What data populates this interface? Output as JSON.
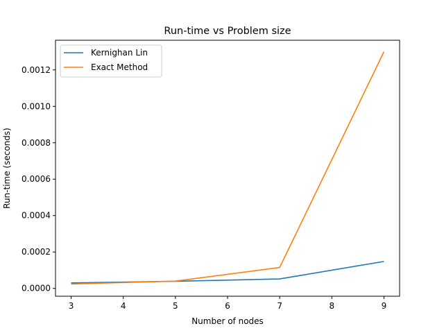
{
  "chart_data": {
    "type": "line",
    "title": "Run-time vs Problem size",
    "xlabel": "Number of nodes",
    "ylabel": "Run-time (seconds)",
    "x": [
      3,
      5,
      7,
      9
    ],
    "xlim": [
      2.7,
      9.3
    ],
    "ylim": [
      -4.3e-05,
      0.001363
    ],
    "x_ticks": [
      3,
      4,
      5,
      6,
      7,
      8,
      9
    ],
    "x_tick_labels": [
      "3",
      "4",
      "5",
      "6",
      "7",
      "8",
      "9"
    ],
    "y_ticks": [
      0,
      0.0002,
      0.0004,
      0.0006,
      0.0008,
      0.001,
      0.0012
    ],
    "y_tick_labels": [
      "0.0000",
      "0.0002",
      "0.0004",
      "0.0006",
      "0.0008",
      "0.0010",
      "0.0012"
    ],
    "grid": false,
    "legend_position": "top-left",
    "series": [
      {
        "name": "Kernighan Lin",
        "color": "#1f77b4",
        "values": [
          3e-05,
          3.9e-05,
          5.2e-05,
          0.000148
        ]
      },
      {
        "name": "Exact Method",
        "color": "#ff7f0e",
        "values": [
          2.4e-05,
          4e-05,
          0.000115,
          0.0013
        ]
      }
    ]
  }
}
